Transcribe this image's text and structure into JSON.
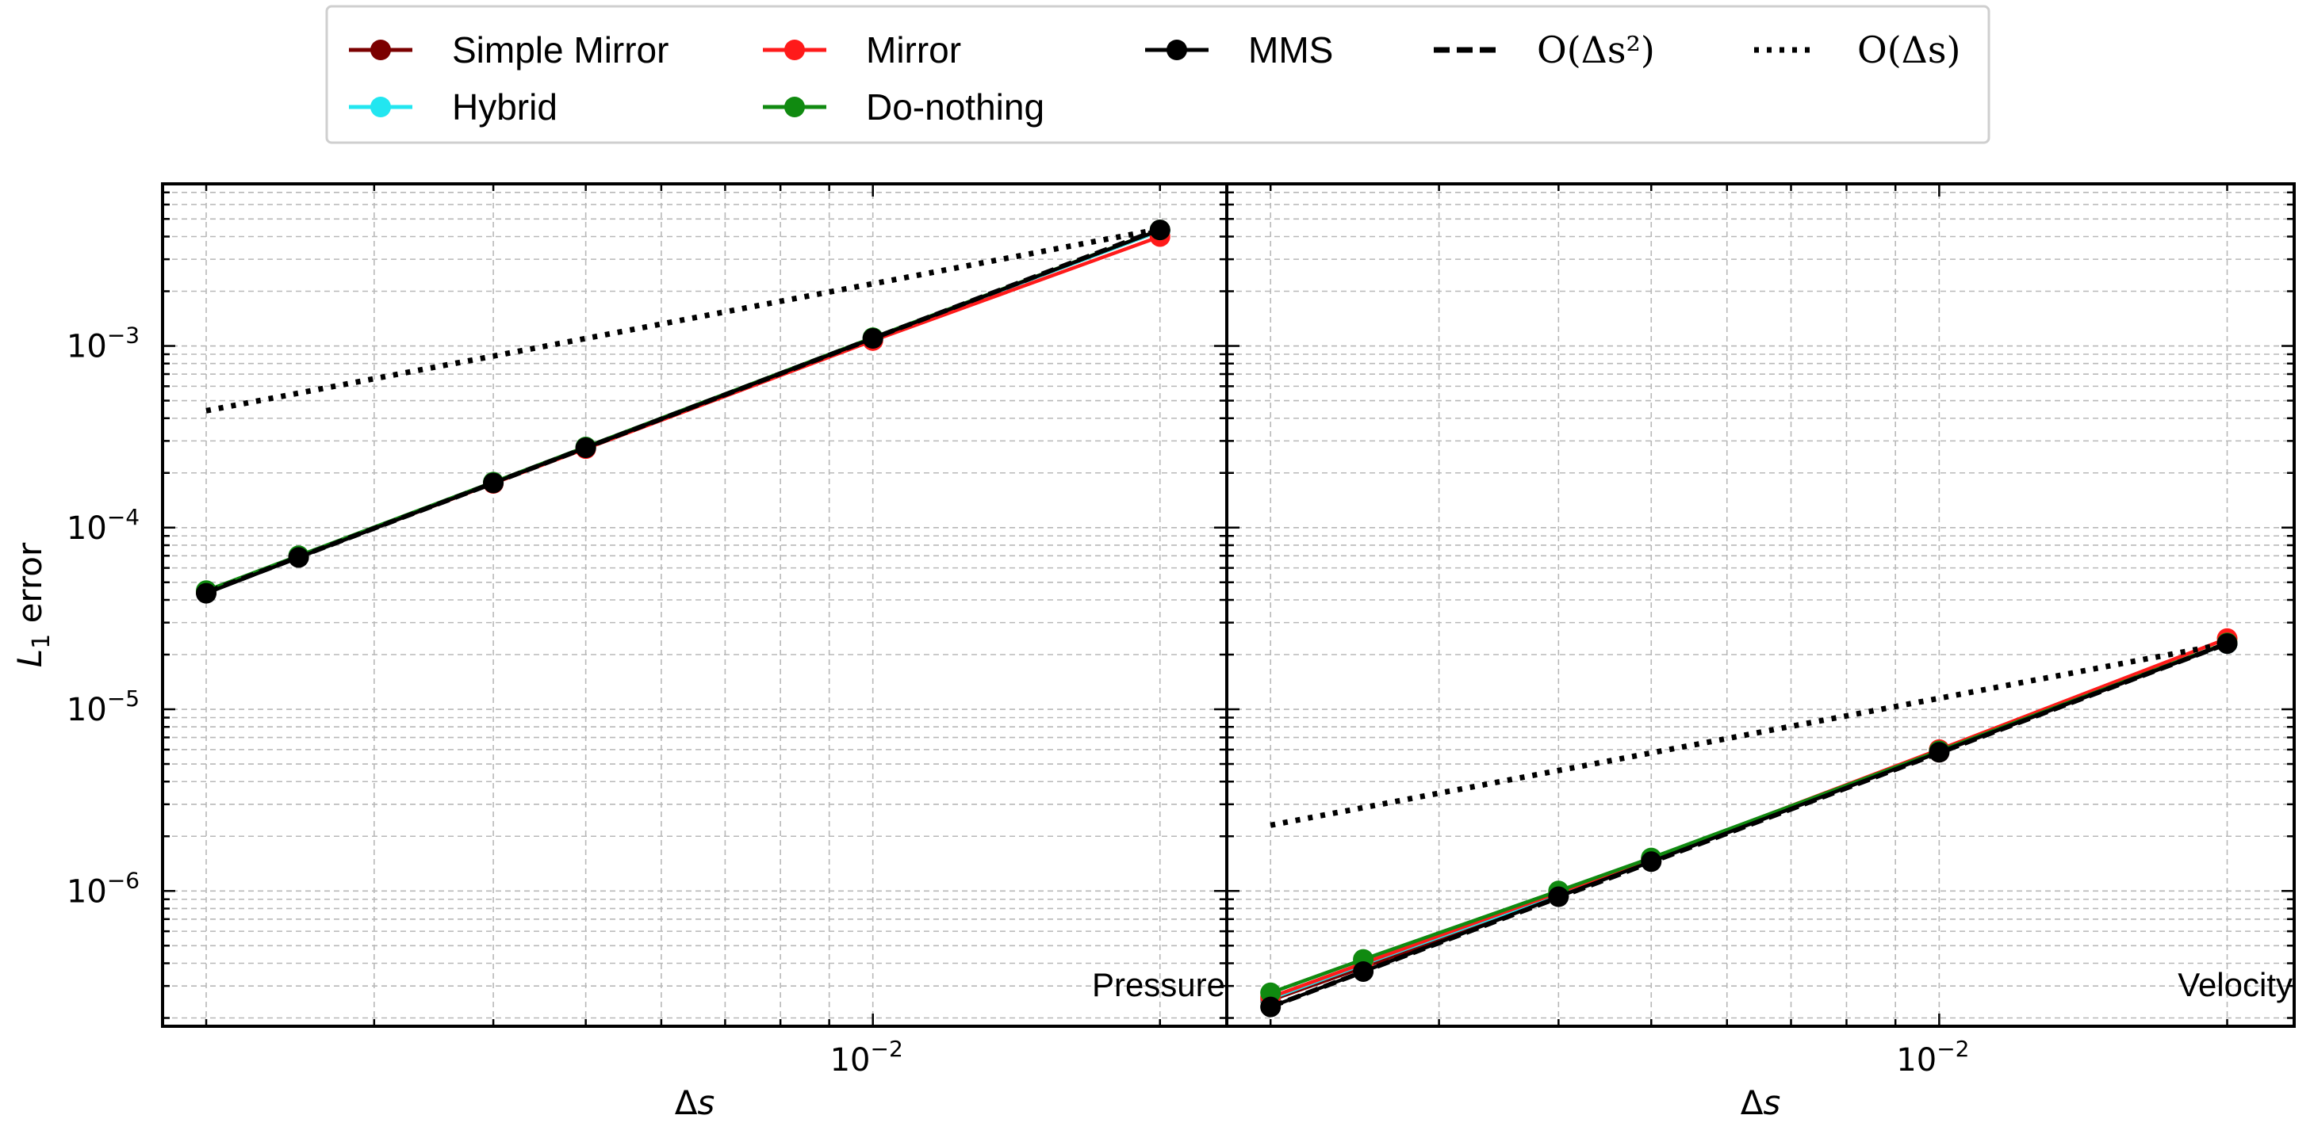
{
  "legend": {
    "entries": [
      {
        "key": "simple_mirror",
        "label": "Simple Mirror",
        "color": "#7b0000",
        "style": "marker-line"
      },
      {
        "key": "mirror",
        "label": "Mirror",
        "color": "#ff1a1a",
        "style": "marker-line"
      },
      {
        "key": "mms",
        "label": "MMS",
        "color": "#000000",
        "style": "marker-line"
      },
      {
        "key": "o2",
        "label": "O(Δs²)",
        "color": "#000000",
        "style": "dashed"
      },
      {
        "key": "o1",
        "label": "O(Δs)",
        "color": "#000000",
        "style": "dotted"
      },
      {
        "key": "hybrid",
        "label": "Hybrid",
        "color": "#22e6f0",
        "style": "marker-line"
      },
      {
        "key": "do_nothing",
        "label": "Do-nothing",
        "color": "#108a10",
        "style": "marker-line"
      }
    ]
  },
  "chart_data": [
    {
      "type": "line",
      "panel_label": "Pressure",
      "xlabel": "Δs",
      "ylabel": "L1 error",
      "xscale": "log",
      "yscale": "log",
      "xlim": [
        0.0018,
        0.0235
      ],
      "ylim": [
        1.8e-07,
        0.0078
      ],
      "grid": true,
      "x_tick_labels": [
        {
          "value": 0.01,
          "label": "10",
          "exp": "−2"
        }
      ],
      "y_tick_labels": [
        {
          "value": 0.001,
          "label": "10",
          "exp": "−3"
        },
        {
          "value": 0.0001,
          "label": "10",
          "exp": "−4"
        },
        {
          "value": 1e-05,
          "label": "10",
          "exp": "−5"
        },
        {
          "value": 1e-06,
          "label": "10",
          "exp": "−6"
        }
      ],
      "series": [
        {
          "name": "Simple Mirror",
          "color": "#7b0000",
          "x": [
            0.002,
            0.0025,
            0.004,
            0.005,
            0.01,
            0.02
          ],
          "y": [
            4.4e-05,
            6.9e-05,
            0.000176,
            0.000275,
            0.0011,
            0.0043
          ]
        },
        {
          "name": "Hybrid",
          "color": "#22e6f0",
          "x": [
            0.002,
            0.0025,
            0.004,
            0.005,
            0.01,
            0.02
          ],
          "y": [
            4.4e-05,
            6.9e-05,
            0.000177,
            0.000276,
            0.0011,
            0.0043
          ]
        },
        {
          "name": "Mirror",
          "color": "#ff1a1a",
          "x": [
            0.002,
            0.0025,
            0.004,
            0.005,
            0.01,
            0.02
          ],
          "y": [
            4.4e-05,
            6.9e-05,
            0.000175,
            0.000272,
            0.00107,
            0.004
          ]
        },
        {
          "name": "Do-nothing",
          "color": "#108a10",
          "x": [
            0.002,
            0.0025,
            0.004,
            0.005,
            0.01,
            0.02
          ],
          "y": [
            4.5e-05,
            7e-05,
            0.000178,
            0.000278,
            0.00111,
            0.00435
          ]
        },
        {
          "name": "MMS",
          "color": "#000000",
          "x": [
            0.002,
            0.0025,
            0.004,
            0.005,
            0.01,
            0.02
          ],
          "y": [
            4.35e-05,
            6.85e-05,
            0.000176,
            0.000275,
            0.0011,
            0.00435
          ]
        },
        {
          "name": "O(Δs²)",
          "color": "#000000",
          "style": "dashed",
          "x": [
            0.002,
            0.02
          ],
          "y": [
            4.4e-05,
            0.0044
          ]
        },
        {
          "name": "O(Δs)",
          "color": "#000000",
          "style": "dotted",
          "x": [
            0.002,
            0.02
          ],
          "y": [
            0.00044,
            0.0044
          ]
        }
      ]
    },
    {
      "type": "line",
      "panel_label": "Velocity",
      "xlabel": "Δs",
      "ylabel": "",
      "xscale": "log",
      "yscale": "log",
      "xlim": [
        0.0018,
        0.0235
      ],
      "ylim": [
        1.8e-07,
        0.0078
      ],
      "grid": true,
      "x_tick_labels": [
        {
          "value": 0.01,
          "label": "10",
          "exp": "−2"
        }
      ],
      "y_tick_labels": [],
      "series": [
        {
          "name": "Simple Mirror",
          "color": "#7b0000",
          "x": [
            0.002,
            0.0025,
            0.004,
            0.005,
            0.01,
            0.02
          ],
          "y": [
            2.5e-07,
            3.8e-07,
            9.4e-07,
            1.46e-06,
            5.8e-06,
            2.3e-05
          ]
        },
        {
          "name": "Hybrid",
          "color": "#22e6f0",
          "x": [
            0.002,
            0.0025,
            0.004,
            0.005,
            0.01,
            0.02
          ],
          "y": [
            2.55e-07,
            3.95e-07,
            9.6e-07,
            1.48e-06,
            5.85e-06,
            2.3e-05
          ]
        },
        {
          "name": "Mirror",
          "color": "#ff1a1a",
          "x": [
            0.002,
            0.0025,
            0.004,
            0.005,
            0.01,
            0.02
          ],
          "y": [
            2.6e-07,
            4e-07,
            9.8e-07,
            1.5e-06,
            6e-06,
            2.45e-05
          ]
        },
        {
          "name": "Do-nothing",
          "color": "#108a10",
          "x": [
            0.002,
            0.0025,
            0.004,
            0.005,
            0.01,
            0.02
          ],
          "y": [
            2.75e-07,
            4.2e-07,
            1e-06,
            1.52e-06,
            5.9e-06,
            2.32e-05
          ]
        },
        {
          "name": "MMS",
          "color": "#000000",
          "x": [
            0.002,
            0.0025,
            0.004,
            0.005,
            0.01,
            0.02
          ],
          "y": [
            2.3e-07,
            3.6e-07,
            9.3e-07,
            1.45e-06,
            5.8e-06,
            2.3e-05
          ]
        },
        {
          "name": "O(Δs²)",
          "color": "#000000",
          "style": "dashed",
          "x": [
            0.002,
            0.02
          ],
          "y": [
            2.3e-07,
            2.3e-05
          ]
        },
        {
          "name": "O(Δs)",
          "color": "#000000",
          "style": "dotted",
          "x": [
            0.002,
            0.02
          ],
          "y": [
            2.3e-06,
            2.3e-05
          ]
        }
      ]
    }
  ]
}
